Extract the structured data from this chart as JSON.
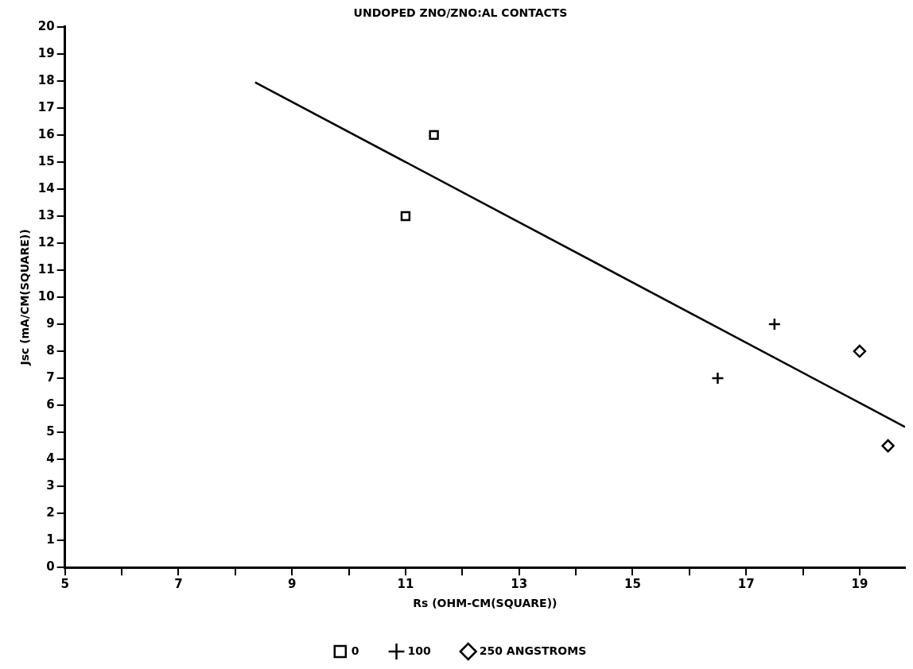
{
  "chart_data": {
    "type": "scatter",
    "title": "UNDOPED ZNO/ZNO:AL CONTACTS",
    "xlabel": "Rs (OHM-CM(SQUARE))",
    "ylabel": "Jsc (mA/CM(SQUARE))",
    "series": [
      {
        "name": "0",
        "color": "#000000",
        "marker": "square",
        "x": [
          11,
          11.5
        ],
        "values": [
          13,
          16
        ]
      },
      {
        "name": "100",
        "color": "#000000",
        "marker": "cross",
        "x": [
          16.5,
          17.5
        ],
        "values": [
          7,
          9
        ]
      },
      {
        "name": "250 ANGSTROMS",
        "color": "#000000",
        "marker": "diamond",
        "x": [
          19,
          19.5
        ],
        "values": [
          8,
          4.5
        ]
      },
      {
        "type": "line",
        "color": "#000000",
        "marker": "none",
        "x": [
          8.35,
          19.8
        ],
        "values": [
          17.95,
          5.2
        ]
      }
    ],
    "xlim": [
      5,
      19.8
    ],
    "ylim": [
      0,
      20
    ],
    "xticks": [
      5,
      {
        "value": 6,
        "label": null
      },
      7,
      {
        "value": 8,
        "label": null
      },
      9,
      {
        "value": 10,
        "label": null
      },
      11,
      {
        "value": 12,
        "label": null
      },
      13,
      {
        "value": 14,
        "label": null
      },
      15,
      {
        "value": 16,
        "label": null
      },
      17,
      {
        "value": 18,
        "label": null
      },
      19
    ],
    "yticks": [
      0,
      1,
      2,
      3,
      4,
      5,
      6,
      7,
      8,
      9,
      10,
      11,
      12,
      13,
      14,
      15,
      16,
      17,
      18,
      19,
      20
    ],
    "grid": false,
    "legend": "bottom"
  }
}
